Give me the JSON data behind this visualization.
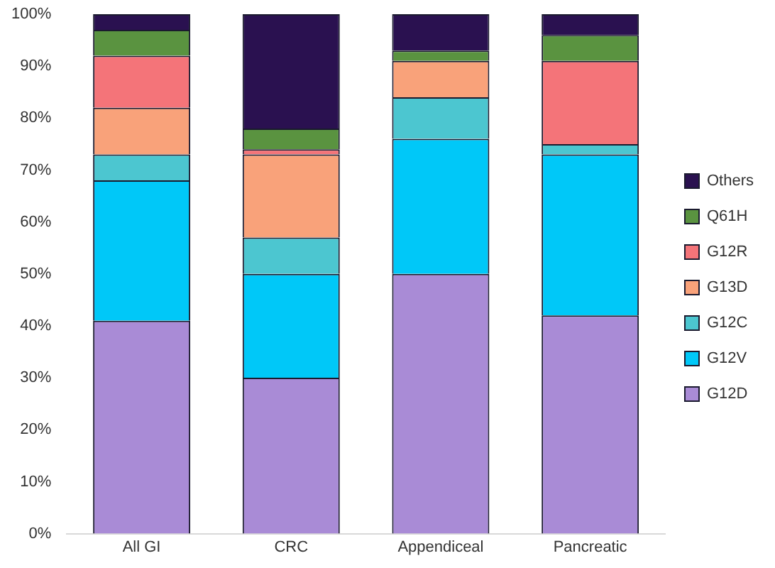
{
  "chart_data": {
    "type": "bar",
    "stacked": true,
    "categories": [
      "All GI",
      "CRC",
      "Appendiceal",
      "Pancreatic"
    ],
    "series": [
      {
        "name": "G12D",
        "color": "#a98bd6",
        "values": [
          41,
          30,
          50,
          42
        ]
      },
      {
        "name": "G12V",
        "color": "#00c8f8",
        "values": [
          27,
          20,
          26,
          31
        ]
      },
      {
        "name": "G12C",
        "color": "#4cc6d0",
        "values": [
          5,
          7,
          8,
          2
        ]
      },
      {
        "name": "G13D",
        "color": "#f9a27a",
        "values": [
          9,
          16,
          7,
          0
        ]
      },
      {
        "name": "G12R",
        "color": "#f47479",
        "values": [
          10,
          1,
          0,
          16
        ]
      },
      {
        "name": "Q61H",
        "color": "#5a9340",
        "values": [
          5,
          4,
          2,
          5
        ]
      },
      {
        "name": "Others",
        "color": "#2a1150",
        "values": [
          3,
          22,
          7,
          4
        ]
      }
    ],
    "ylim": [
      0,
      100
    ],
    "yticks": [
      {
        "value": 0,
        "label": "0%"
      },
      {
        "value": 10,
        "label": "10%"
      },
      {
        "value": 20,
        "label": "20%"
      },
      {
        "value": 30,
        "label": "30%"
      },
      {
        "value": 40,
        "label": "40%"
      },
      {
        "value": 50,
        "label": "50%"
      },
      {
        "value": 60,
        "label": "60%"
      },
      {
        "value": 70,
        "label": "70%"
      },
      {
        "value": 80,
        "label": "80%"
      },
      {
        "value": 90,
        "label": "90%"
      },
      {
        "value": 100,
        "label": "100%"
      }
    ],
    "legend": "right",
    "grid": false
  }
}
